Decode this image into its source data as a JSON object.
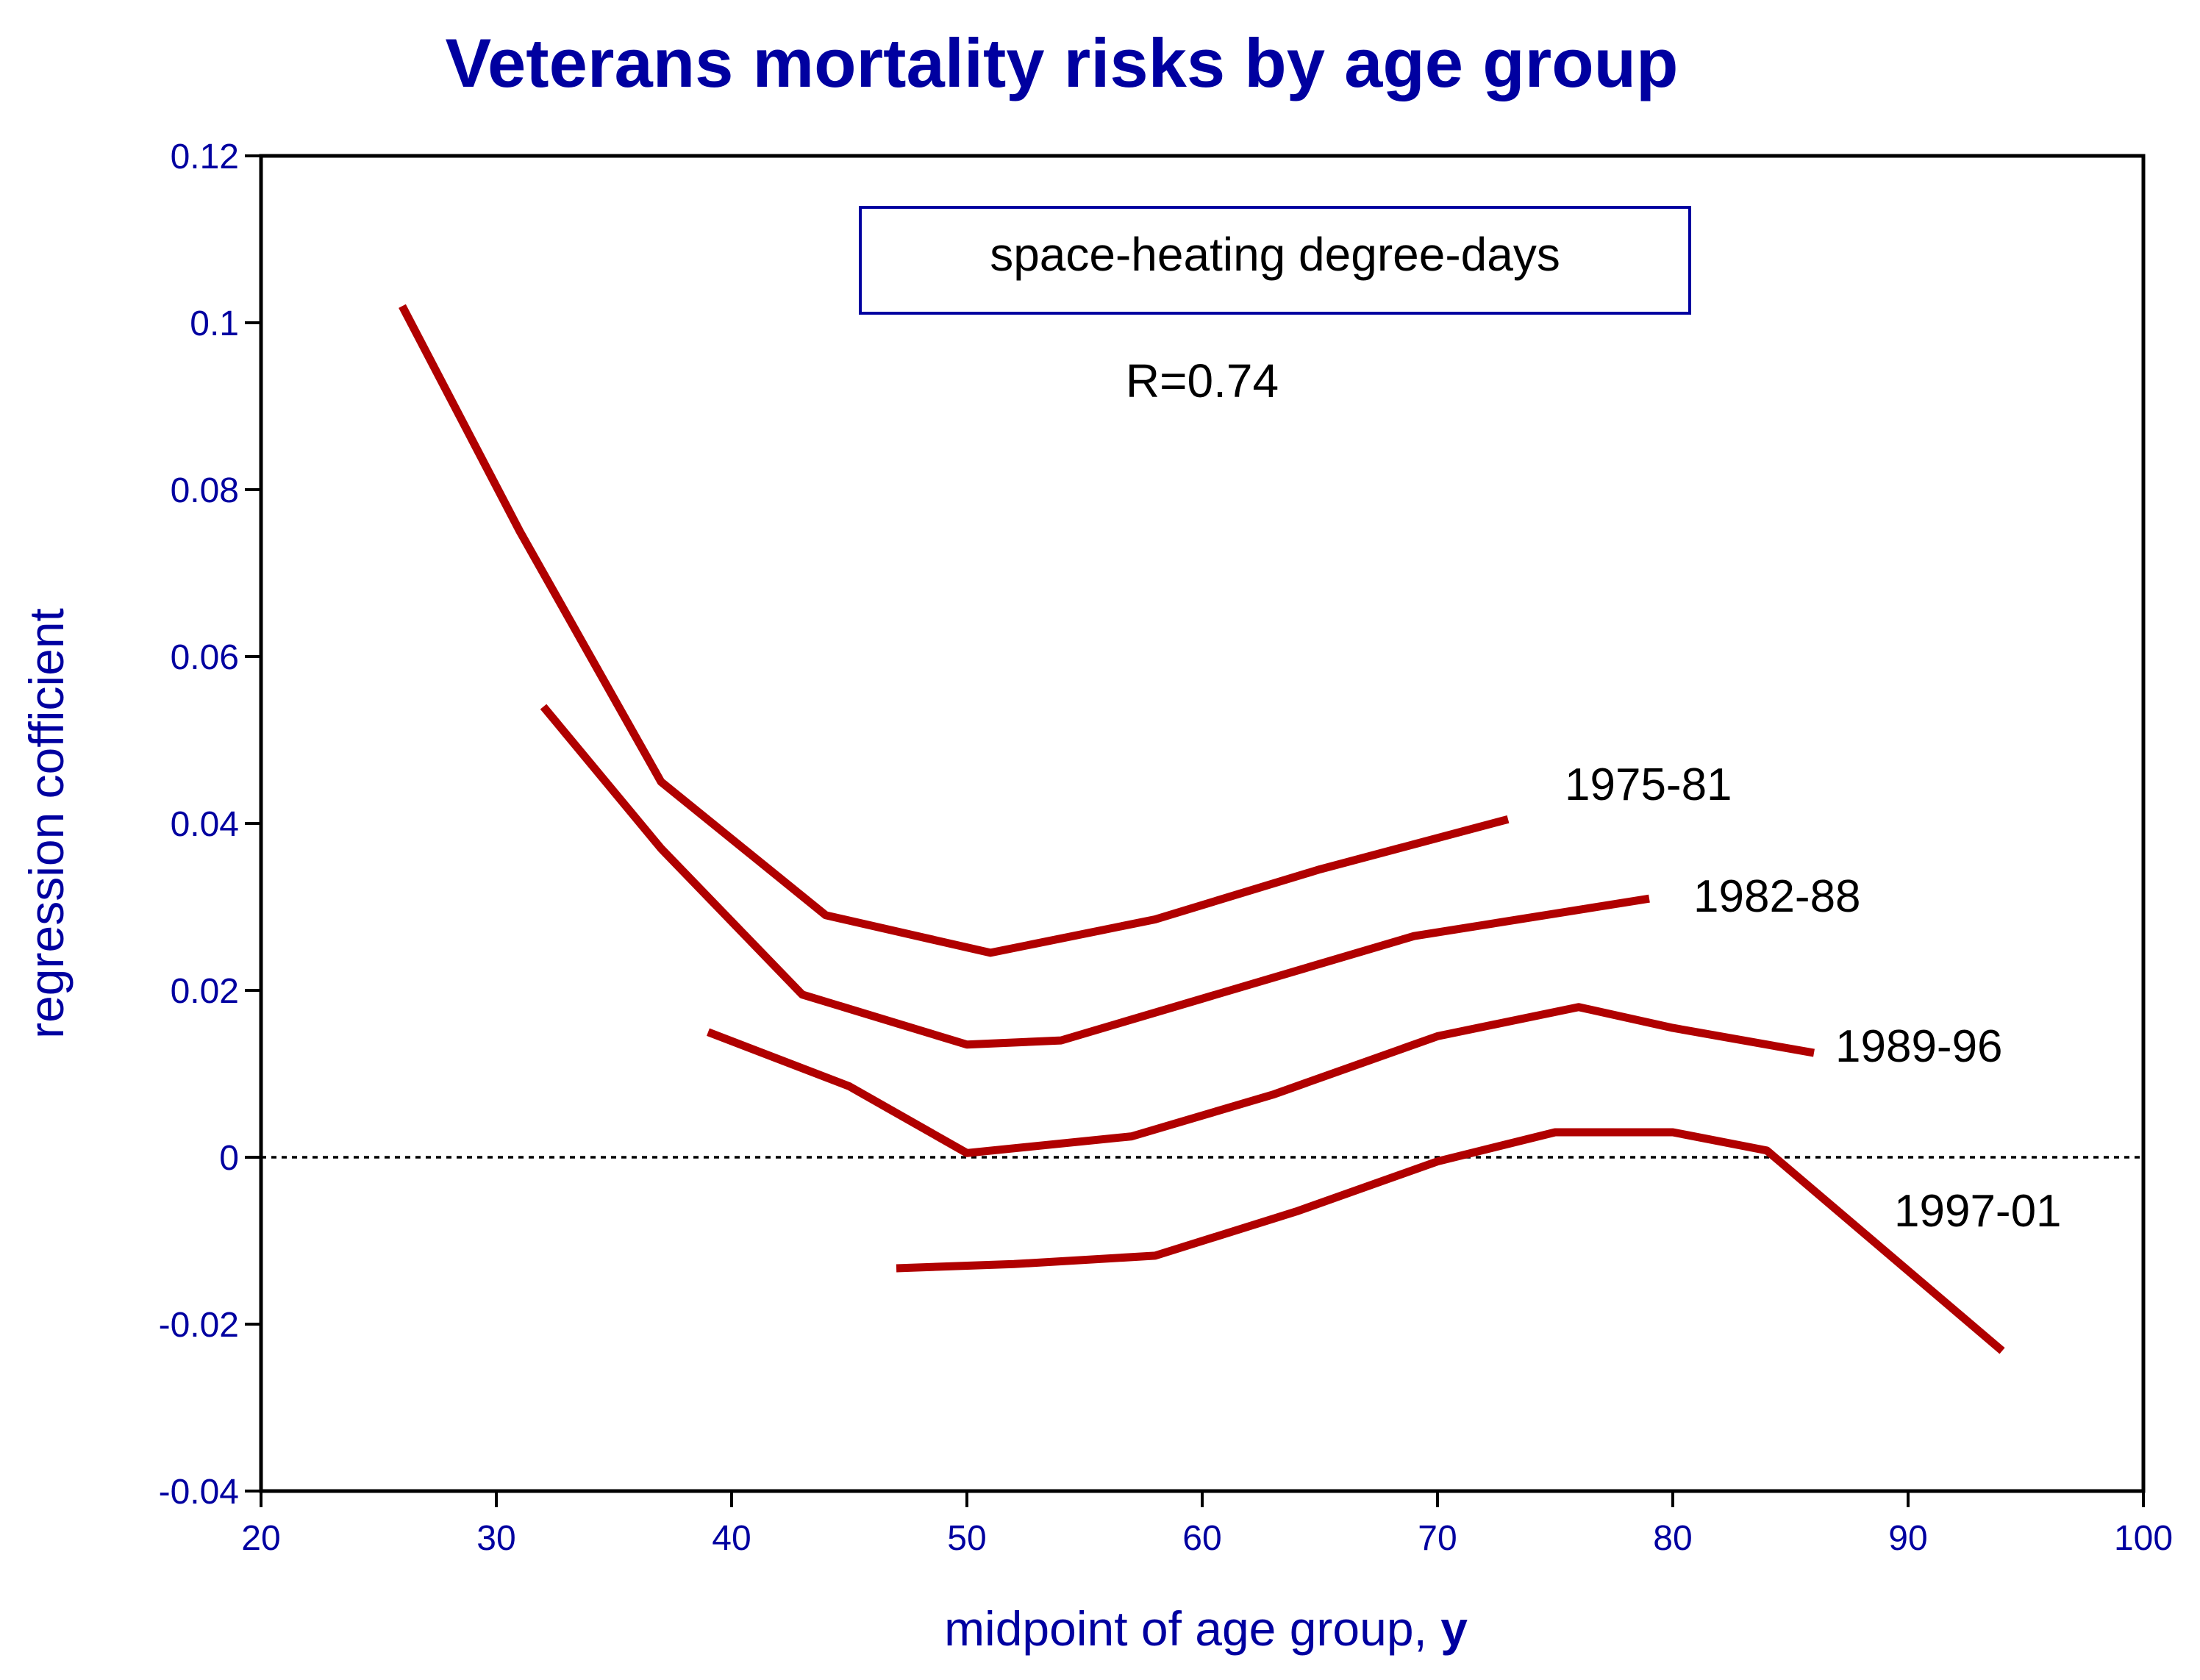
{
  "chart_data": {
    "type": "line",
    "title": "Veterans mortality risks by age group",
    "xlabel": "midpoint of age group, ",
    "xlabel_bold": "y",
    "ylabel": "regression cofficient",
    "xlim": [
      20,
      100
    ],
    "ylim": [
      -0.04,
      0.12
    ],
    "xticks": [
      20,
      30,
      40,
      50,
      60,
      70,
      80,
      90,
      100
    ],
    "xtick_labels": [
      "20",
      "30",
      "40",
      "50",
      "60",
      "70",
      "80",
      "90",
      "100"
    ],
    "yticks": [
      -0.04,
      -0.02,
      0,
      0.02,
      0.04,
      0.06,
      0.08,
      0.1,
      0.12
    ],
    "ytick_labels": [
      "-0.04",
      "-0.02",
      "0",
      "0.02",
      "0.04",
      "0.06",
      "0.08",
      "0.1",
      "0.12"
    ],
    "reference_line": {
      "y": 0,
      "style": "dotted"
    },
    "series": [
      {
        "name": "1975-81",
        "x": [
          26,
          31,
          37,
          44,
          51,
          58,
          65,
          73
        ],
        "y": [
          0.102,
          0.075,
          0.045,
          0.029,
          0.0245,
          0.0285,
          0.0345,
          0.0405
        ]
      },
      {
        "name": "1982-88",
        "x": [
          32,
          37,
          43,
          50,
          54,
          60,
          69,
          79
        ],
        "y": [
          0.054,
          0.037,
          0.0195,
          0.0135,
          0.014,
          0.019,
          0.0265,
          0.031
        ]
      },
      {
        "name": "1989-96",
        "x": [
          39,
          45,
          50,
          57,
          63,
          70,
          76,
          80,
          86
        ],
        "y": [
          0.015,
          0.0085,
          0.0005,
          0.0025,
          0.0075,
          0.0145,
          0.018,
          0.0155,
          0.0125
        ]
      },
      {
        "name": "1997-01",
        "x": [
          47,
          52,
          58,
          64,
          70,
          75,
          80,
          84,
          94
        ],
        "y": [
          -0.0133,
          -0.0128,
          -0.0118,
          -0.0065,
          -0.0005,
          0.003,
          0.003,
          0.0008,
          -0.0232
        ]
      }
    ],
    "annotations": {
      "box_text": "space-heating degree-days",
      "r_text": "R=0.74"
    },
    "colors": {
      "series": "#b00000",
      "text": "#0000a0",
      "axes": "#000000"
    }
  }
}
